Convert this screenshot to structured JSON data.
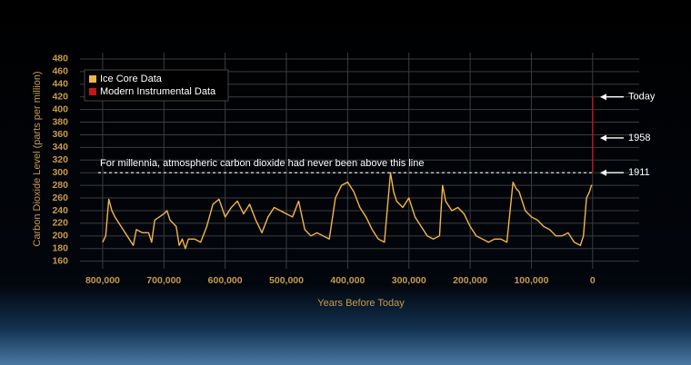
{
  "chart_data": {
    "type": "line",
    "x_label": "Years Before Today",
    "y_label": "Carbon Dioxide Level (parts per million)",
    "xlim": [
      837000,
      -76000
    ],
    "ylim": [
      148,
      490
    ],
    "xticks": [
      {
        "value": 800000,
        "label": "800,000"
      },
      {
        "value": 700000,
        "label": "700,000"
      },
      {
        "value": 600000,
        "label": "600,000"
      },
      {
        "value": 500000,
        "label": "500,000"
      },
      {
        "value": 400000,
        "label": "400,000"
      },
      {
        "value": 300000,
        "label": "300,000"
      },
      {
        "value": 200000,
        "label": "200,000"
      },
      {
        "value": 100000,
        "label": "100,000"
      },
      0
    ],
    "yticks": [
      160,
      180,
      200,
      220,
      240,
      260,
      280,
      300,
      320,
      340,
      360,
      380,
      400,
      420,
      440,
      460,
      480
    ],
    "grid": true,
    "legend": "top-left",
    "series": [
      {
        "name": "Ice Core Data",
        "color": "#f2b54a",
        "x": [
          800000,
          795000,
          790000,
          785000,
          780000,
          770000,
          760000,
          750000,
          745000,
          735000,
          725000,
          720000,
          715000,
          700000,
          695000,
          690000,
          680000,
          675000,
          670000,
          665000,
          660000,
          650000,
          640000,
          630000,
          620000,
          610000,
          600000,
          590000,
          580000,
          570000,
          560000,
          550000,
          540000,
          530000,
          520000,
          510000,
          500000,
          490000,
          480000,
          470000,
          460000,
          450000,
          440000,
          430000,
          420000,
          410000,
          400000,
          390000,
          380000,
          370000,
          360000,
          350000,
          340000,
          330000,
          325000,
          320000,
          310000,
          300000,
          290000,
          280000,
          270000,
          260000,
          250000,
          245000,
          240000,
          230000,
          220000,
          210000,
          200000,
          190000,
          180000,
          170000,
          160000,
          150000,
          140000,
          130000,
          125000,
          120000,
          110000,
          100000,
          90000,
          80000,
          70000,
          60000,
          50000,
          40000,
          30000,
          20000,
          15000,
          10000,
          5000,
          2000,
          500
        ],
        "values": [
          190,
          200,
          258,
          240,
          230,
          215,
          200,
          185,
          210,
          205,
          205,
          190,
          225,
          235,
          240,
          225,
          215,
          185,
          195,
          180,
          195,
          195,
          190,
          215,
          250,
          258,
          230,
          245,
          255,
          235,
          250,
          225,
          205,
          230,
          245,
          240,
          235,
          230,
          255,
          210,
          200,
          205,
          200,
          195,
          260,
          280,
          285,
          270,
          245,
          230,
          210,
          195,
          190,
          300,
          270,
          255,
          245,
          260,
          230,
          215,
          200,
          195,
          200,
          280,
          255,
          240,
          245,
          235,
          215,
          200,
          195,
          190,
          195,
          195,
          190,
          285,
          275,
          270,
          240,
          230,
          225,
          215,
          210,
          200,
          200,
          205,
          190,
          185,
          200,
          260,
          270,
          280,
          280
        ]
      },
      {
        "name": "Modern Instrumental Data",
        "color": "#c4161c",
        "x": [
          65,
          50,
          30,
          10,
          0
        ],
        "values": [
          300,
          315,
          340,
          390,
          420
        ]
      }
    ],
    "reference_line": {
      "value": 300,
      "label": "For millennia, atmospheric carbon dioxide had never been above this line"
    },
    "annotations": [
      {
        "label": "Today",
        "value": 420
      },
      {
        "label": "1958",
        "value": 355
      },
      {
        "label": "1911",
        "value": 300
      }
    ]
  }
}
